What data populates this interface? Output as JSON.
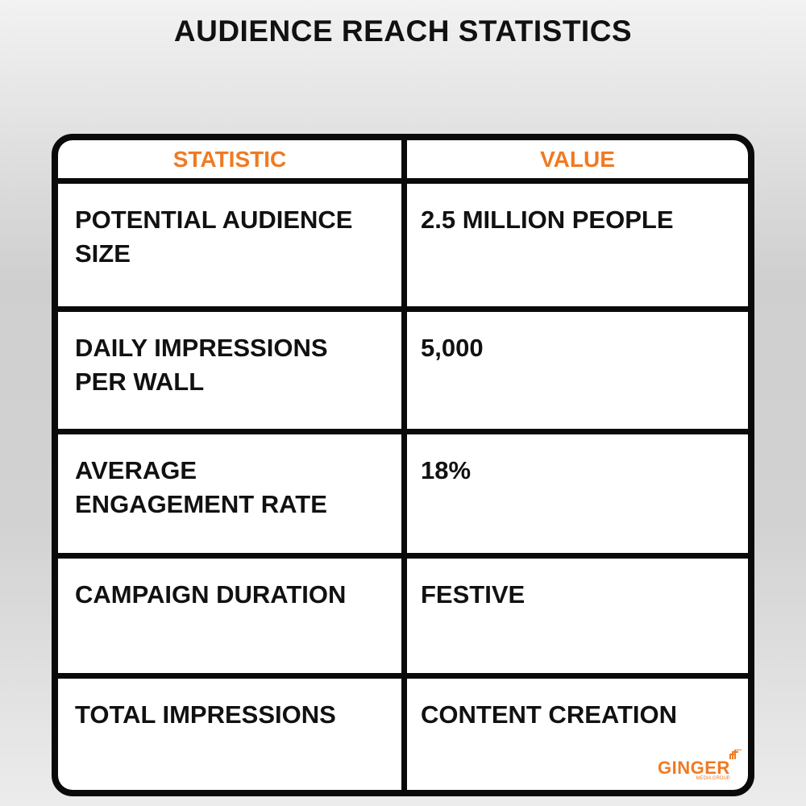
{
  "header": {
    "title": "AUDIENCE REACH STATISTICS"
  },
  "table": {
    "columns": [
      "STATISTIC",
      "VALUE"
    ],
    "rows": [
      [
        "POTENTIAL AUDIENCE SIZE",
        "2.5 MILLION PEOPLE"
      ],
      [
        "DAILY IMPRESSIONS PER WALL",
        "5,000"
      ],
      [
        "AVERAGE ENGAGEMENT RATE",
        "18%"
      ],
      [
        "CAMPAIGN DURATION",
        "FESTIVE"
      ],
      [
        "TOTAL IMPRESSIONS",
        "CONTENT CREATION"
      ]
    ]
  },
  "logo": {
    "name": "GINGER",
    "tagline": "MEDIA GROUP"
  }
}
